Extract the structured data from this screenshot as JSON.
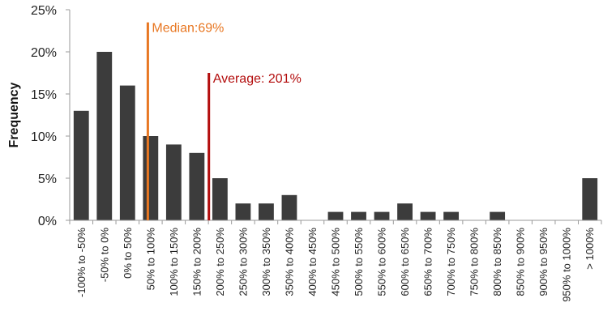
{
  "chart_data": {
    "type": "bar",
    "title": "",
    "xlabel": "",
    "ylabel": "Frequency",
    "ylim": [
      0,
      25
    ],
    "yticks": [
      "0%",
      "5%",
      "10%",
      "15%",
      "20%",
      "25%"
    ],
    "grid": false,
    "categories": [
      "-100% to -50%",
      "-50% to 0%",
      "0% to 50%",
      "50% to 100%",
      "100% to 150%",
      "150% to 200%",
      "200% to 250%",
      "250% to 300%",
      "300% to 350%",
      "350% to 400%",
      "400% to 450%",
      "450% to 500%",
      "500% to 550%",
      "550% to 600%",
      "600% to 650%",
      "650% to 700%",
      "700% to 750%",
      "750% to 800%",
      "800% to 850%",
      "850% to 900%",
      "900% to 950%",
      "950% to 1000%",
      "> 1000%"
    ],
    "values": [
      13,
      20,
      16,
      10,
      9,
      8,
      5,
      2,
      2,
      3,
      0,
      1,
      1,
      1,
      2,
      1,
      1,
      0,
      1,
      0,
      0,
      0,
      5
    ],
    "bar_color": "#3c3c3c",
    "annotations": [
      {
        "label": "Median:69%",
        "value": 69,
        "line_top": 23.5,
        "color": "#e87722"
      },
      {
        "label": "Average:  201%",
        "value": 201,
        "line_top": 17.5,
        "color": "#b30d0d"
      }
    ]
  }
}
